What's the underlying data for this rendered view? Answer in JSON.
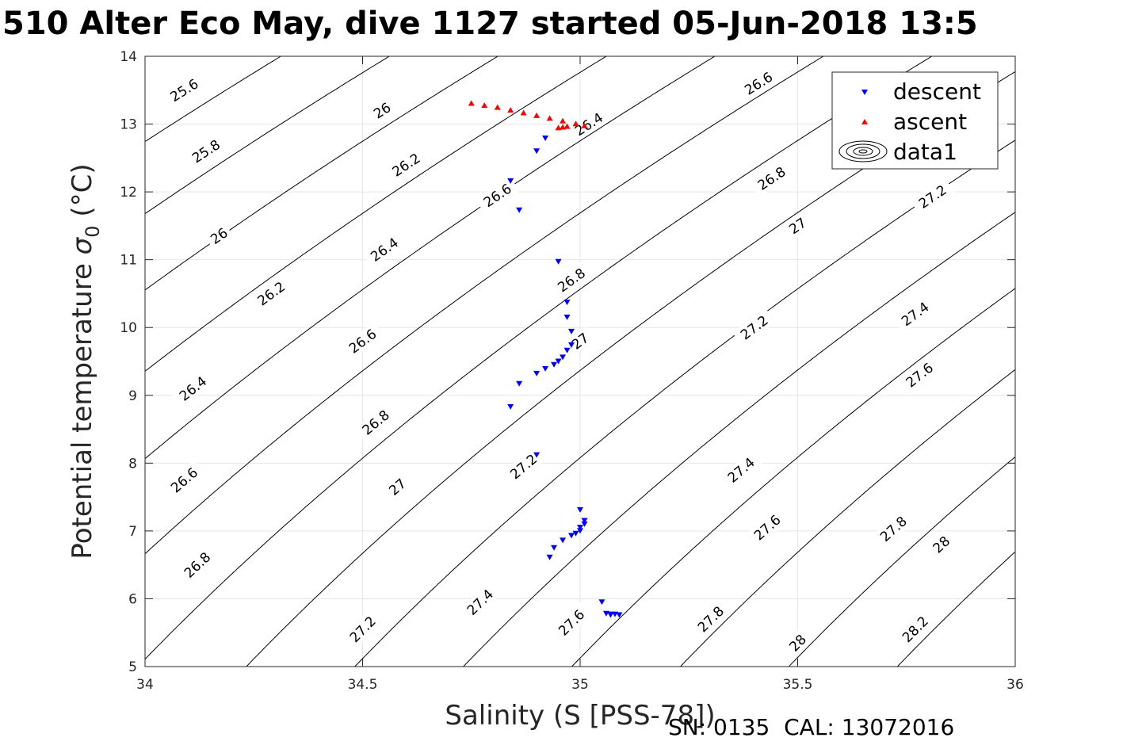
{
  "title": "510 Alter Eco May, dive 1127 started 05-Jun-2018 13:5",
  "footer": "SN: 0135  CAL: 13072016",
  "colors": {
    "descent": "#0000ff",
    "ascent": "#ff0000",
    "contour": "#000000",
    "grid": "#e6e6e6"
  },
  "chart_data": {
    "type": "scatter",
    "xlabel": "Salinity (S [PSS-78])",
    "ylabel_main": "Potential temperature ",
    "ylabel_sigma": "σ",
    "ylabel_sub": "0",
    "ylabel_unit": " (°C)",
    "xlim": [
      34,
      36
    ],
    "ylim": [
      5,
      14
    ],
    "xticks": [
      34,
      34.5,
      35,
      35.5,
      36
    ],
    "xtick_labels": [
      "34",
      "34.5",
      "35",
      "35.5",
      "36"
    ],
    "yticks": [
      5,
      6,
      7,
      8,
      9,
      10,
      11,
      12,
      13,
      14
    ],
    "ytick_labels": [
      "5",
      "6",
      "7",
      "8",
      "9",
      "10",
      "11",
      "12",
      "13",
      "14"
    ],
    "grid": true,
    "legend_position": "top-right",
    "legend": [
      "descent",
      "ascent",
      "data1"
    ],
    "series": [
      {
        "name": "descent",
        "marker": "down-triangle",
        "points": [
          [
            34.92,
            12.79
          ],
          [
            34.9,
            12.6
          ],
          [
            34.84,
            12.16
          ],
          [
            34.86,
            11.73
          ],
          [
            34.95,
            10.97
          ],
          [
            34.97,
            10.37
          ],
          [
            34.97,
            10.15
          ],
          [
            34.98,
            9.94
          ],
          [
            34.98,
            9.74
          ],
          [
            34.97,
            9.66
          ],
          [
            34.96,
            9.56
          ],
          [
            34.95,
            9.5
          ],
          [
            34.94,
            9.45
          ],
          [
            34.92,
            9.39
          ],
          [
            34.9,
            9.32
          ],
          [
            34.86,
            9.17
          ],
          [
            34.84,
            8.83
          ],
          [
            34.9,
            8.12
          ],
          [
            35.0,
            7.31
          ],
          [
            35.01,
            7.15
          ],
          [
            35.01,
            7.1
          ],
          [
            35.0,
            7.05
          ],
          [
            35.0,
            7.0
          ],
          [
            34.99,
            6.96
          ],
          [
            34.98,
            6.93
          ],
          [
            34.96,
            6.86
          ],
          [
            34.94,
            6.75
          ],
          [
            34.93,
            6.61
          ],
          [
            35.05,
            5.95
          ],
          [
            35.06,
            5.78
          ],
          [
            35.07,
            5.77
          ],
          [
            35.08,
            5.77
          ],
          [
            35.09,
            5.76
          ],
          [
            35.07,
            5.76
          ]
        ]
      },
      {
        "name": "ascent",
        "marker": "up-triangle",
        "points": [
          [
            34.75,
            13.31
          ],
          [
            34.78,
            13.28
          ],
          [
            34.81,
            13.25
          ],
          [
            34.84,
            13.21
          ],
          [
            34.87,
            13.17
          ],
          [
            34.9,
            13.13
          ],
          [
            34.93,
            13.09
          ],
          [
            34.96,
            13.05
          ],
          [
            34.99,
            13.01
          ],
          [
            35.01,
            12.98
          ],
          [
            34.95,
            12.95
          ],
          [
            34.96,
            12.96
          ],
          [
            34.97,
            12.97
          ]
        ]
      }
    ],
    "contour_levels": [
      "25.6",
      "25.8",
      "26",
      "26.2",
      "26.4",
      "26.6",
      "26.8",
      "27",
      "27.2",
      "27.4",
      "27.6",
      "27.8",
      "28",
      "28.2"
    ],
    "contour_labels": [
      {
        "text": "25.6",
        "s": 34.09,
        "t": 13.5
      },
      {
        "text": "25.8",
        "s": 34.14,
        "t": 12.6
      },
      {
        "text": "26",
        "s": 34.17,
        "t": 11.35
      },
      {
        "text": "26.2",
        "s": 34.29,
        "t": 10.5
      },
      {
        "text": "26.4",
        "s": 34.11,
        "t": 9.1
      },
      {
        "text": "26.6",
        "s": 34.09,
        "t": 7.75
      },
      {
        "text": "26.8",
        "s": 34.12,
        "t": 6.5
      },
      {
        "text": "26",
        "s": 34.545,
        "t": 13.2
      },
      {
        "text": "26.2",
        "s": 34.6,
        "t": 12.4
      },
      {
        "text": "26.4",
        "s": 34.55,
        "t": 11.15
      },
      {
        "text": "26.6",
        "s": 34.5,
        "t": 9.8
      },
      {
        "text": "26.8",
        "s": 34.53,
        "t": 8.6
      },
      {
        "text": "27",
        "s": 34.58,
        "t": 7.65
      },
      {
        "text": "27.2",
        "s": 34.5,
        "t": 5.55
      },
      {
        "text": "26.4",
        "s": 35.02,
        "t": 13.0
      },
      {
        "text": "26.6",
        "s": 34.81,
        "t": 11.95
      },
      {
        "text": "26.8",
        "s": 34.98,
        "t": 10.7
      },
      {
        "text": "27",
        "s": 35.0,
        "t": 9.8
      },
      {
        "text": "27.2",
        "s": 34.87,
        "t": 7.95
      },
      {
        "text": "27.4",
        "s": 34.77,
        "t": 5.95
      },
      {
        "text": "27.6",
        "s": 34.98,
        "t": 5.65
      },
      {
        "text": "26.6",
        "s": 35.41,
        "t": 13.6
      },
      {
        "text": "26.8",
        "s": 35.44,
        "t": 12.2
      },
      {
        "text": "27",
        "s": 35.5,
        "t": 11.5
      },
      {
        "text": "27.2",
        "s": 35.4,
        "t": 10.0
      },
      {
        "text": "27.4",
        "s": 35.37,
        "t": 7.9
      },
      {
        "text": "27.8",
        "s": 35.3,
        "t": 5.7
      },
      {
        "text": "27.2",
        "s": 35.81,
        "t": 11.93
      },
      {
        "text": "27.4",
        "s": 35.77,
        "t": 10.2
      },
      {
        "text": "27.6",
        "s": 35.78,
        "t": 9.3
      },
      {
        "text": "27.6",
        "s": 35.43,
        "t": 7.05
      },
      {
        "text": "27.8",
        "s": 35.72,
        "t": 7.03
      },
      {
        "text": "28",
        "s": 35.83,
        "t": 6.8
      },
      {
        "text": "28",
        "s": 35.5,
        "t": 5.35
      },
      {
        "text": "28.2",
        "s": 35.77,
        "t": 5.55
      }
    ]
  }
}
